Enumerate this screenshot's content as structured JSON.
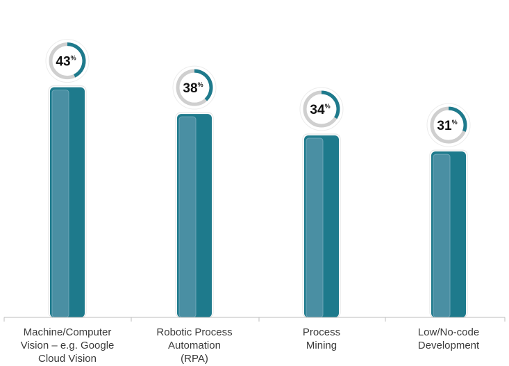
{
  "chart_data": {
    "type": "bar",
    "categories": [
      [
        "Machine/Computer",
        "Vision – e.g. Google",
        "Cloud Vision"
      ],
      [
        "Robotic Process",
        "Automation",
        "(RPA)"
      ],
      [
        "Process",
        "Mining"
      ],
      [
        "Low/No-code",
        "Development"
      ]
    ],
    "values": [
      43,
      38,
      34,
      31
    ],
    "unit": "%",
    "ylim": [
      0,
      58
    ],
    "grid": false,
    "legend": "none"
  },
  "colors": {
    "bar": "#1e7a8c",
    "bar_highlight": "#4a8fa3",
    "ring_track": "#cfcfcf",
    "ring_fill": "#1e7a8c",
    "axis": "#bdbdbd"
  }
}
